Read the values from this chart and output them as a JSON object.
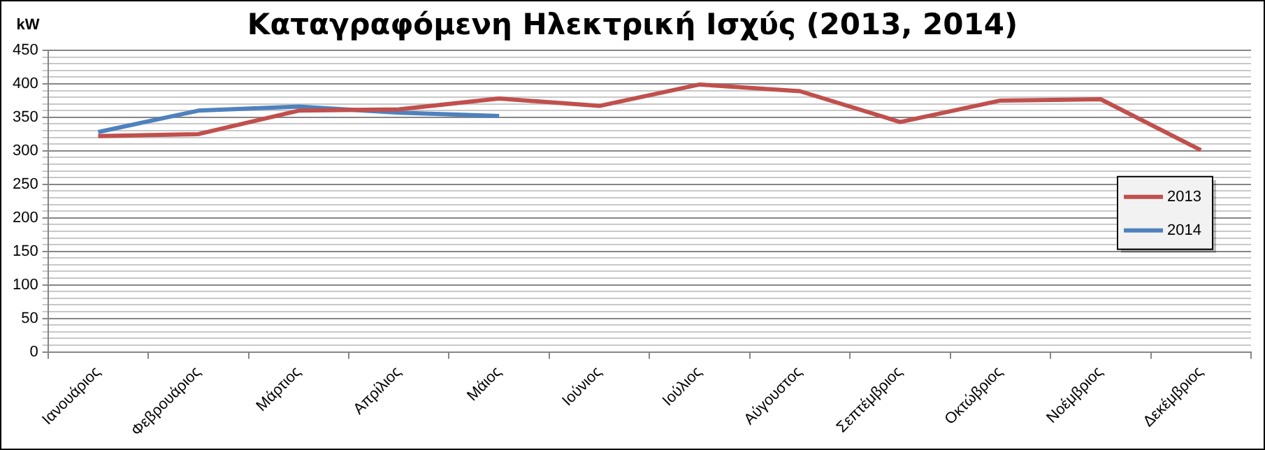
{
  "chart_data": {
    "type": "line",
    "title": "Καταγραφόμενη Ηλεκτρική Ισχύς (2013, 2014)",
    "ylabel": "kW",
    "categories": [
      "Ιανουάριος",
      "Φεβρουάριος",
      "Μάρτιος",
      "Απρίλιος",
      "Μάιος",
      "Ιούνιος",
      "Ιούλιος",
      "Αύγουστος",
      "Σεπτέμβριος",
      "Οκτώβριος",
      "Νοέμβριος",
      "Δεκέμβριος"
    ],
    "series": [
      {
        "name": "2013",
        "color": "#c0504d",
        "values": [
          322,
          325,
          360,
          362,
          378,
          367,
          399,
          389,
          343,
          375,
          377,
          301
        ]
      },
      {
        "name": "2014",
        "color": "#4f81bd",
        "values": [
          328,
          360,
          366,
          357,
          352,
          null,
          null,
          null,
          null,
          null,
          null,
          null
        ]
      }
    ],
    "ylim": [
      0,
      450
    ],
    "yticks": [
      0,
      {
        "value": 10,
        "label": null
      },
      {
        "value": 20,
        "label": null
      },
      {
        "value": 30,
        "label": null
      },
      {
        "value": 40,
        "label": null
      },
      50,
      {
        "value": 60,
        "label": null
      },
      {
        "value": 70,
        "label": null
      },
      {
        "value": 80,
        "label": null
      },
      {
        "value": 90,
        "label": null
      },
      100,
      {
        "value": 110,
        "label": null
      },
      {
        "value": 120,
        "label": null
      },
      {
        "value": 130,
        "label": null
      },
      {
        "value": 140,
        "label": null
      },
      150,
      {
        "value": 160,
        "label": null
      },
      {
        "value": 170,
        "label": null
      },
      {
        "value": 180,
        "label": null
      },
      {
        "value": 190,
        "label": null
      },
      200,
      {
        "value": 210,
        "label": null
      },
      {
        "value": 220,
        "label": null
      },
      {
        "value": 230,
        "label": null
      },
      {
        "value": 240,
        "label": null
      },
      250,
      {
        "value": 260,
        "label": null
      },
      {
        "value": 270,
        "label": null
      },
      {
        "value": 280,
        "label": null
      },
      {
        "value": 290,
        "label": null
      },
      300,
      {
        "value": 310,
        "label": null
      },
      {
        "value": 320,
        "label": null
      },
      {
        "value": 330,
        "label": null
      },
      {
        "value": 340,
        "label": null
      },
      350,
      {
        "value": 360,
        "label": null
      },
      {
        "value": 370,
        "label": null
      },
      {
        "value": 380,
        "label": null
      },
      {
        "value": 390,
        "label": null
      },
      400,
      {
        "value": 410,
        "label": null
      },
      {
        "value": 420,
        "label": null
      },
      {
        "value": 430,
        "label": null
      },
      {
        "value": 440,
        "label": null
      },
      450
    ],
    "grid": "y",
    "legend": "right",
    "marker": "none",
    "line_style": "solid"
  }
}
